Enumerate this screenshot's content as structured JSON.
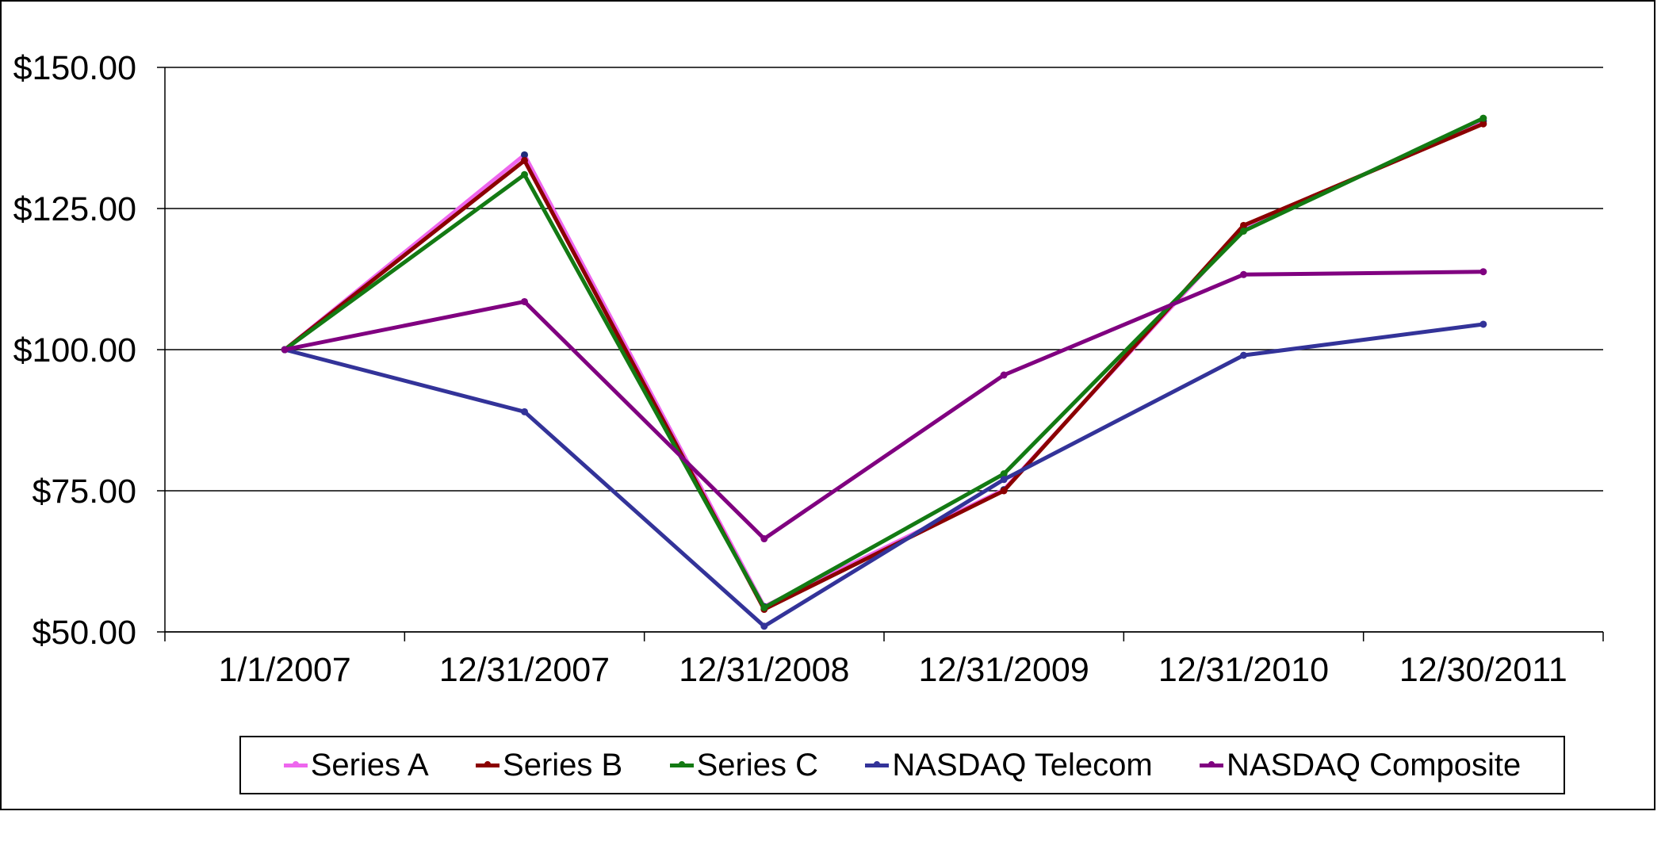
{
  "chart_data": {
    "type": "line",
    "title": "",
    "xlabel": "",
    "ylabel": "",
    "categories": [
      "1/1/2007",
      "12/31/2007",
      "12/31/2008",
      "12/31/2009",
      "12/31/2010",
      "12/30/2011"
    ],
    "ytick_values": [
      50,
      75,
      100,
      125,
      150
    ],
    "ytick_labels": [
      "$50.00",
      "$75.00",
      "$100.00",
      "$125.00",
      "$150.00"
    ],
    "ylim": [
      50,
      150
    ],
    "grid": true,
    "legend_position": "bottom",
    "series": [
      {
        "name": "Series A",
        "color": "#ee66ee",
        "marker_color": "#1f2b7a",
        "values": [
          100,
          134.5,
          54.5,
          75.2,
          121.5,
          140.5
        ]
      },
      {
        "name": "Series B",
        "color": "#8b0000",
        "marker_color": "#8b0000",
        "values": [
          100,
          133.5,
          54,
          75,
          122,
          140
        ]
      },
      {
        "name": "Series C",
        "color": "#137a13",
        "marker_color": "#137a13",
        "values": [
          100,
          131,
          54.3,
          78,
          121,
          141
        ]
      },
      {
        "name": "NASDAQ Telecom",
        "color": "#333399",
        "marker_color": "#333399",
        "values": [
          100,
          89,
          51,
          77,
          99,
          104.5
        ]
      },
      {
        "name": "NASDAQ Composite",
        "color": "#800080",
        "marker_color": "#800080",
        "values": [
          100,
          108.5,
          66.5,
          95.5,
          113.3,
          113.8
        ]
      }
    ]
  }
}
